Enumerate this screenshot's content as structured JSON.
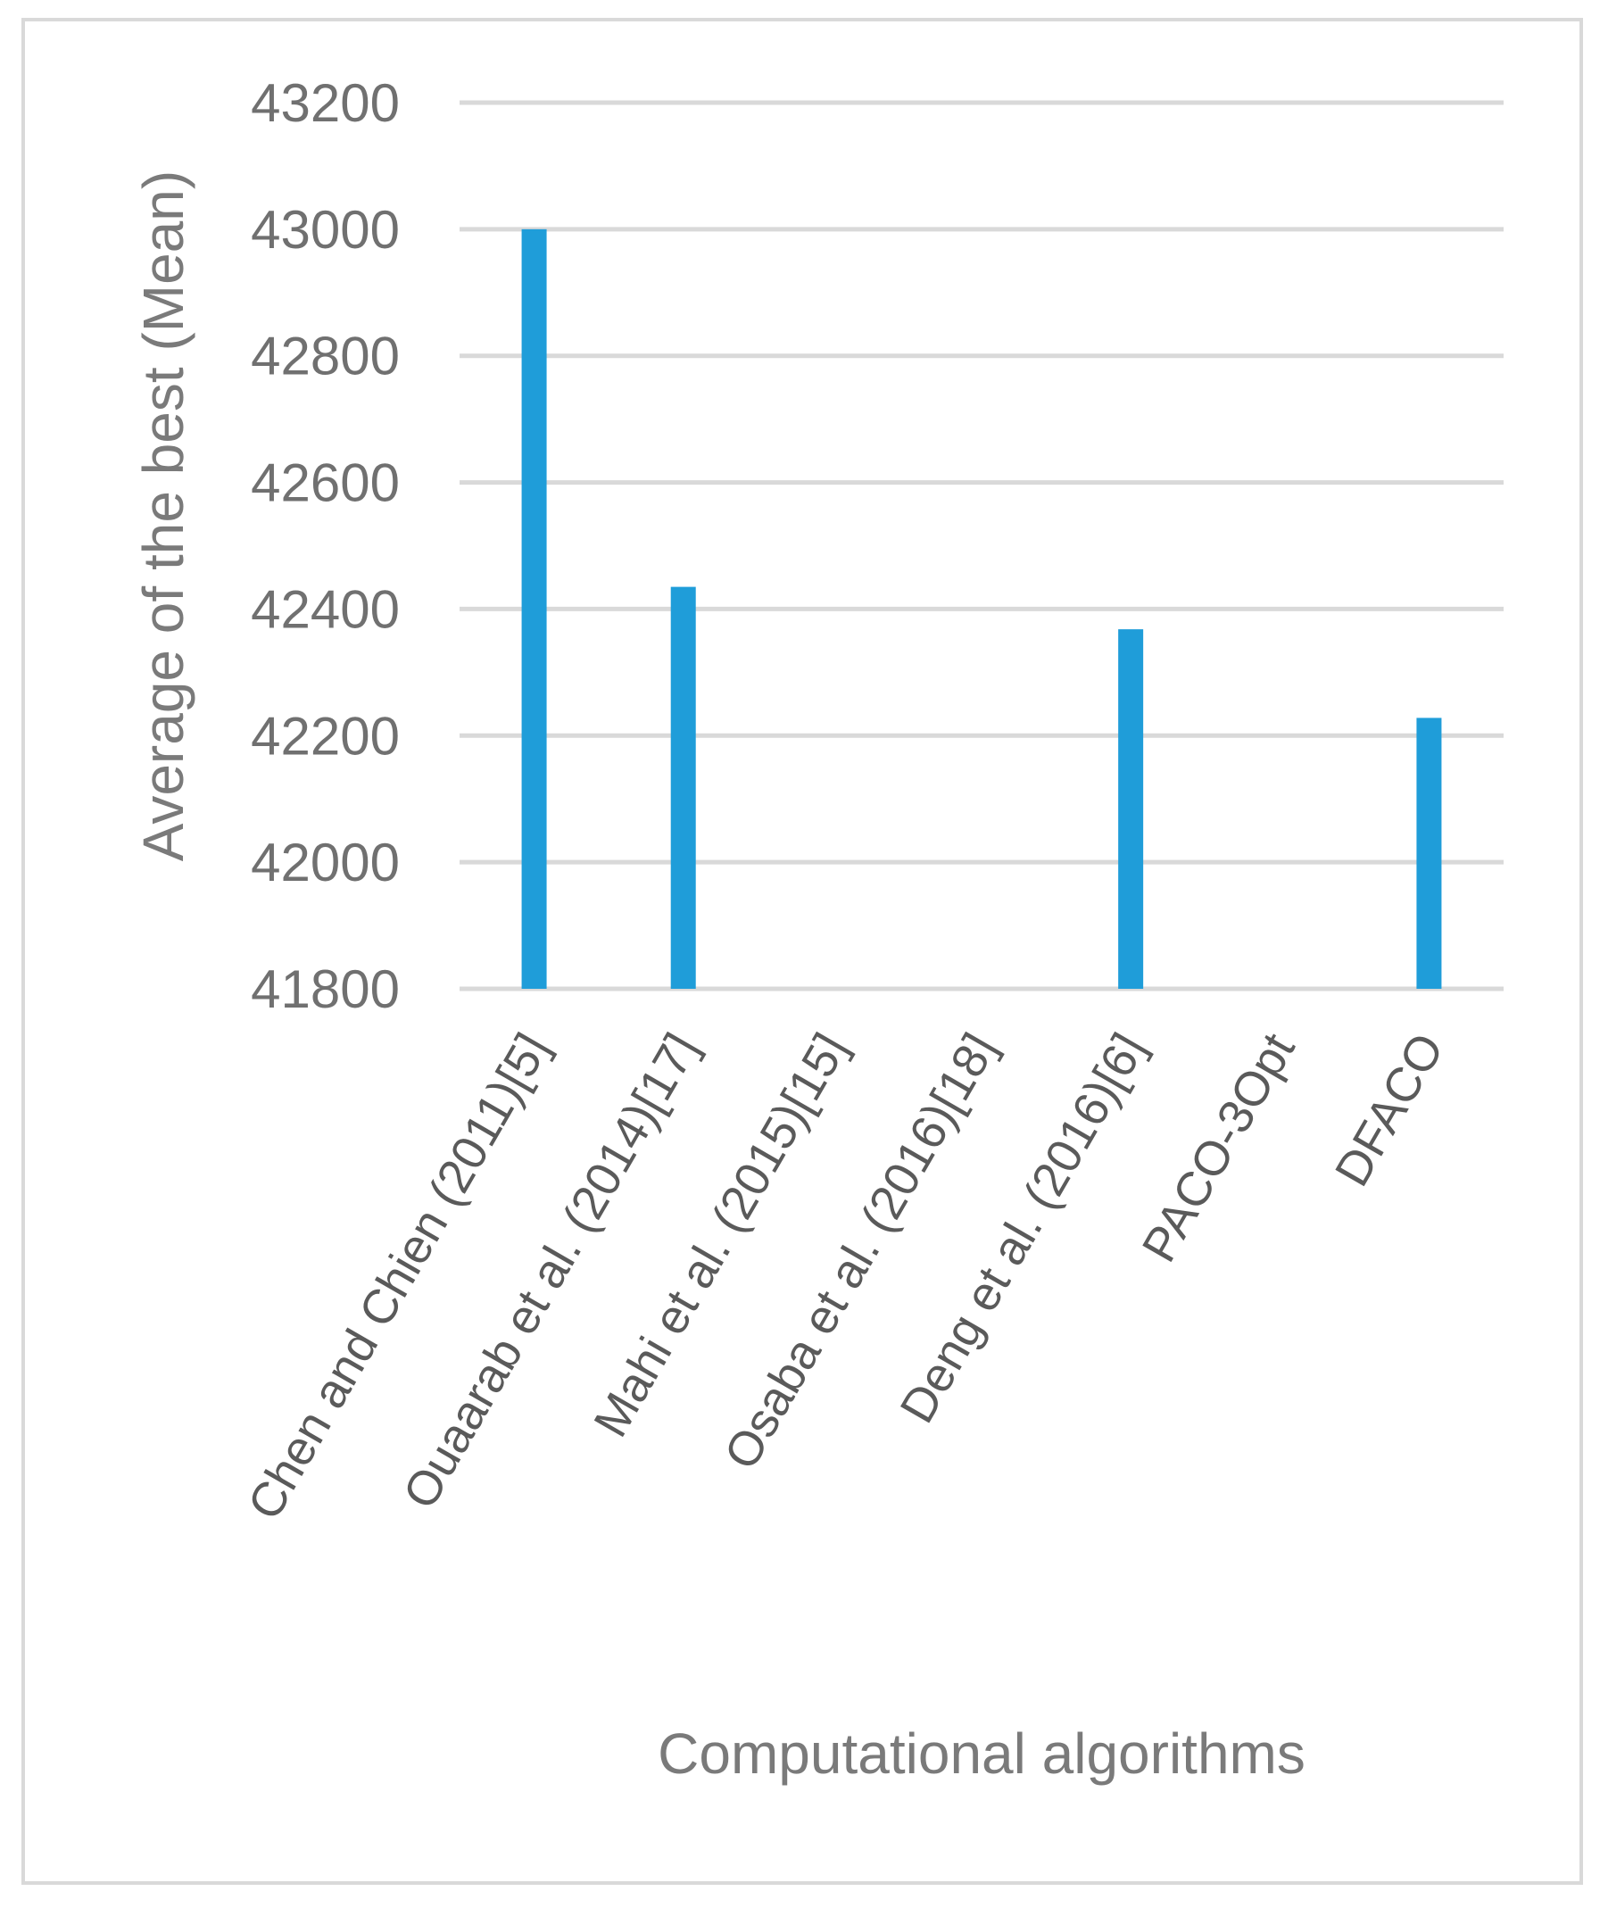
{
  "chart_data": {
    "type": "bar",
    "title": "",
    "xlabel": "Computational algorithms",
    "ylabel": "Average of the best  (Mean)",
    "ylim": [
      41800,
      43200
    ],
    "yticks": [
      41800,
      42000,
      42200,
      42400,
      42600,
      42800,
      43000,
      43200
    ],
    "grid": true,
    "categories": [
      "Chen and Chien (2011)[5]",
      "Ouaarab et al. (2014)[17]",
      "Mahi et al. (2015)[15]",
      "Osaba et al. (2016)[18]",
      "Deng et al. (2016)[6]",
      "PACO-3Opt",
      "DFACO"
    ],
    "values": [
      43000,
      42435,
      null,
      null,
      42368,
      null,
      42228
    ],
    "bar_color": "#1f9dd9"
  }
}
